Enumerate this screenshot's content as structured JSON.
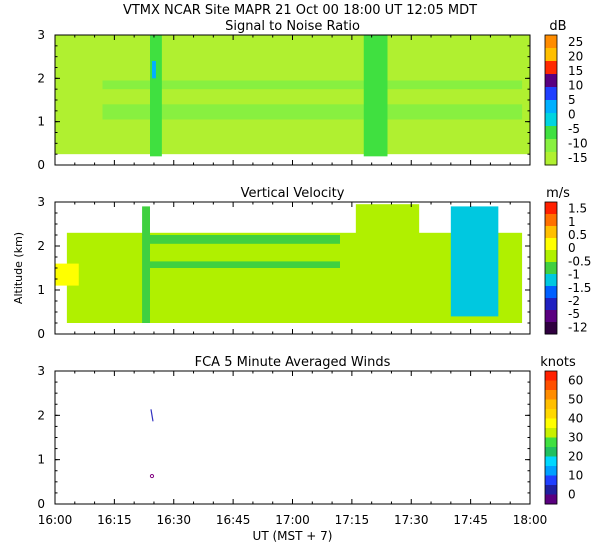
{
  "header": {
    "title": "VTMX  NCAR Site  MAPR 21 Oct 00  18:00 UT  12:05  MDT"
  },
  "chart_data": [
    {
      "type": "heatmap",
      "title": "Signal to Noise Ratio",
      "unit": "dB",
      "xlim": [
        0,
        120
      ],
      "ylim": [
        0,
        3
      ],
      "yticks": [
        "0",
        "1",
        "2",
        "3"
      ],
      "colorbar": {
        "labels": [
          "25",
          "20",
          "15",
          "10",
          "5",
          "0",
          "-5",
          "-10",
          "-15"
        ],
        "colors": [
          "#ff8c00",
          "#ffbf00",
          "#ff2a00",
          "#5a0080",
          "#2040ff",
          "#00b0ff",
          "#00d4e0",
          "#40e040",
          "#88f040",
          "#b0f030"
        ]
      },
      "regions": [
        {
          "t0": 0,
          "t1": 120,
          "h0": 0.25,
          "h1": 3.0,
          "level": "-15"
        },
        {
          "t0": 12,
          "t1": 118,
          "h0": 1.05,
          "h1": 1.4,
          "level": "-10"
        },
        {
          "t0": 12,
          "t1": 118,
          "h0": 1.75,
          "h1": 1.95,
          "level": "-10"
        },
        {
          "t0": 24,
          "t1": 27,
          "h0": 0.2,
          "h1": 3.0,
          "level": "-5"
        },
        {
          "t0": 78,
          "t1": 84,
          "h0": 0.2,
          "h1": 3.0,
          "level": "-5"
        },
        {
          "t0": 24.5,
          "t1": 25.5,
          "h0": 2.0,
          "h1": 2.4,
          "level": "5"
        }
      ]
    },
    {
      "type": "heatmap",
      "title": "Vertical Velocity",
      "unit": "m/s",
      "ylabel": "Altitude (km)",
      "xlim": [
        0,
        120
      ],
      "ylim": [
        0,
        3
      ],
      "yticks": [
        "0",
        "1",
        "2",
        "3"
      ],
      "colorbar": {
        "labels": [
          "1.5",
          "1",
          "0.5",
          "0",
          "-0.5",
          "-1",
          "-1.5",
          "-2",
          "-5",
          "-12"
        ],
        "colors": [
          "#ff2000",
          "#ff7000",
          "#ffbf00",
          "#ffff00",
          "#b0f000",
          "#40d040",
          "#00c8e0",
          "#0060ff",
          "#2020c0",
          "#5a0080",
          "#300040"
        ]
      },
      "regions": [
        {
          "t0": 3,
          "t1": 118,
          "h0": 0.25,
          "h1": 2.3,
          "level": "0"
        },
        {
          "t0": 24,
          "t1": 72,
          "h0": 1.5,
          "h1": 1.65,
          "level": "-0.5"
        },
        {
          "t0": 24,
          "t1": 72,
          "h0": 2.05,
          "h1": 2.25,
          "level": "-0.5"
        },
        {
          "t0": 76,
          "t1": 92,
          "h0": 0.3,
          "h1": 2.95,
          "level": "0"
        },
        {
          "t0": 0,
          "t1": 6,
          "h0": 1.1,
          "h1": 1.6,
          "level": "0.5"
        },
        {
          "t0": 100,
          "t1": 112,
          "h0": 0.4,
          "h1": 2.9,
          "level": "-1"
        },
        {
          "t0": 22,
          "t1": 24,
          "h0": 0.25,
          "h1": 2.9,
          "level": "-0.5"
        }
      ]
    },
    {
      "type": "scatter",
      "title": "FCA 5 Minute Averaged Winds",
      "unit": "knots",
      "xlabel": "UT  (MST + 7)",
      "xlim": [
        0,
        120
      ],
      "ylim": [
        0,
        3
      ],
      "yticks": [
        "0",
        "1",
        "2",
        "3"
      ],
      "xticks": [
        "16:00",
        "16:15",
        "16:30",
        "16:45",
        "17:00",
        "17:15",
        "17:30",
        "17:45",
        "18:00"
      ],
      "colorbar": {
        "labels": [
          "60",
          "50",
          "40",
          "30",
          "20",
          "10",
          "0"
        ],
        "colors": [
          "#ff2000",
          "#ff5000",
          "#ff8c00",
          "#ffbf00",
          "#ffd800",
          "#ffff00",
          "#c8f000",
          "#40e040",
          "#20c060",
          "#00d8ff",
          "#00a0ff",
          "#2040ff",
          "#2020a0",
          "#5a0080"
        ]
      },
      "points": [
        {
          "t": 24.5,
          "h": 2.0,
          "level": "0"
        },
        {
          "t": 24.5,
          "h": 0.63,
          "level": "0"
        }
      ]
    }
  ]
}
